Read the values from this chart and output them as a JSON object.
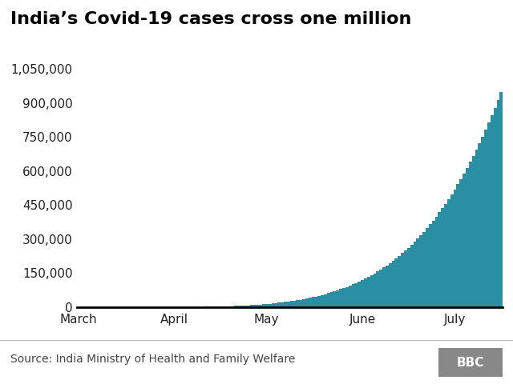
{
  "title": "India’s Covid-19 cases cross one million",
  "bar_color": "#2b8fa4",
  "background_color": "#ffffff",
  "source_text": "Source: India Ministry of Health and Family Welfare",
  "bbc_text": "BBC",
  "ylim": [
    0,
    1050000
  ],
  "yticks": [
    0,
    150000,
    300000,
    450000,
    600000,
    750000,
    900000,
    1050000
  ],
  "ytick_labels": [
    "0",
    "150,000",
    "300,000",
    "450,000",
    "600,000",
    "750,000",
    "900,000",
    "1,050,000"
  ],
  "month_labels": [
    "March",
    "April",
    "May",
    "June",
    "July"
  ],
  "month_positions": [
    0,
    31,
    61,
    92,
    122
  ],
  "title_fontsize": 16,
  "axis_fontsize": 11,
  "source_fontsize": 10,
  "num_bars": 138,
  "peak_value": 950000,
  "growth_exponent": 5.2
}
